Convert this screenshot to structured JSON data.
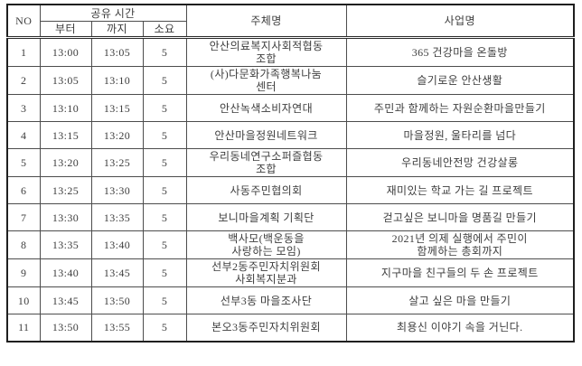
{
  "colors": {
    "background": "#ffffff",
    "text": "#3d3d3d",
    "border_thin": "#4d4d4d",
    "border_thick": "#1f1f1f"
  },
  "table": {
    "headers": {
      "no": "NO",
      "shared_time": "공유 시간",
      "from": "부터",
      "to": "까지",
      "duration": "소요",
      "organizer": "주체명",
      "project": "사업명"
    },
    "rows": [
      {
        "no": "1",
        "from": "13:00",
        "to": "13:05",
        "duration": "5",
        "organizer": "안산의료복지사회적협동\n조합",
        "project": "365 건강마을 온돌방"
      },
      {
        "no": "2",
        "from": "13:05",
        "to": "13:10",
        "duration": "5",
        "organizer": "(사)다문화가족행복나눔\n센터",
        "project": "슬기로운 안산생활"
      },
      {
        "no": "3",
        "from": "13:10",
        "to": "13:15",
        "duration": "5",
        "organizer": "안산녹색소비자연대",
        "project": "주민과 함께하는 자원순환마을만들기"
      },
      {
        "no": "4",
        "from": "13:15",
        "to": "13:20",
        "duration": "5",
        "organizer": "안산마을정원네트워크",
        "project": "마을정원, 울타리를 넘다"
      },
      {
        "no": "5",
        "from": "13:20",
        "to": "13:25",
        "duration": "5",
        "organizer": "우리동네연구소퍼즐협동\n조합",
        "project": "우리동네안전망 건강살롱"
      },
      {
        "no": "6",
        "from": "13:25",
        "to": "13:30",
        "duration": "5",
        "organizer": "사동주민협의회",
        "project": "재미있는 학교 가는 길 프로젝트"
      },
      {
        "no": "7",
        "from": "13:30",
        "to": "13:35",
        "duration": "5",
        "organizer": "보니마을계획 기획단",
        "project": "걷고싶은 보니마을 명품길 만들기"
      },
      {
        "no": "8",
        "from": "13:35",
        "to": "13:40",
        "duration": "5",
        "organizer": "백사모(백운동을\n사랑하는 모임)",
        "project": "2021년 의제 실행에서 주민이\n함께하는 총회까지"
      },
      {
        "no": "9",
        "from": "13:40",
        "to": "13:45",
        "duration": "5",
        "organizer": "선부2동주민자치위원회\n사회복지분과",
        "project": "지구마을 친구들의 두 손 프로젝트"
      },
      {
        "no": "10",
        "from": "13:45",
        "to": "13:50",
        "duration": "5",
        "organizer": "선부3동 마을조사단",
        "project": "살고 싶은 마을 만들기"
      },
      {
        "no": "11",
        "from": "13:50",
        "to": "13:55",
        "duration": "5",
        "organizer": "본오3동주민자치위원회",
        "project": "최용신 이야기 속을 거닌다."
      }
    ]
  }
}
